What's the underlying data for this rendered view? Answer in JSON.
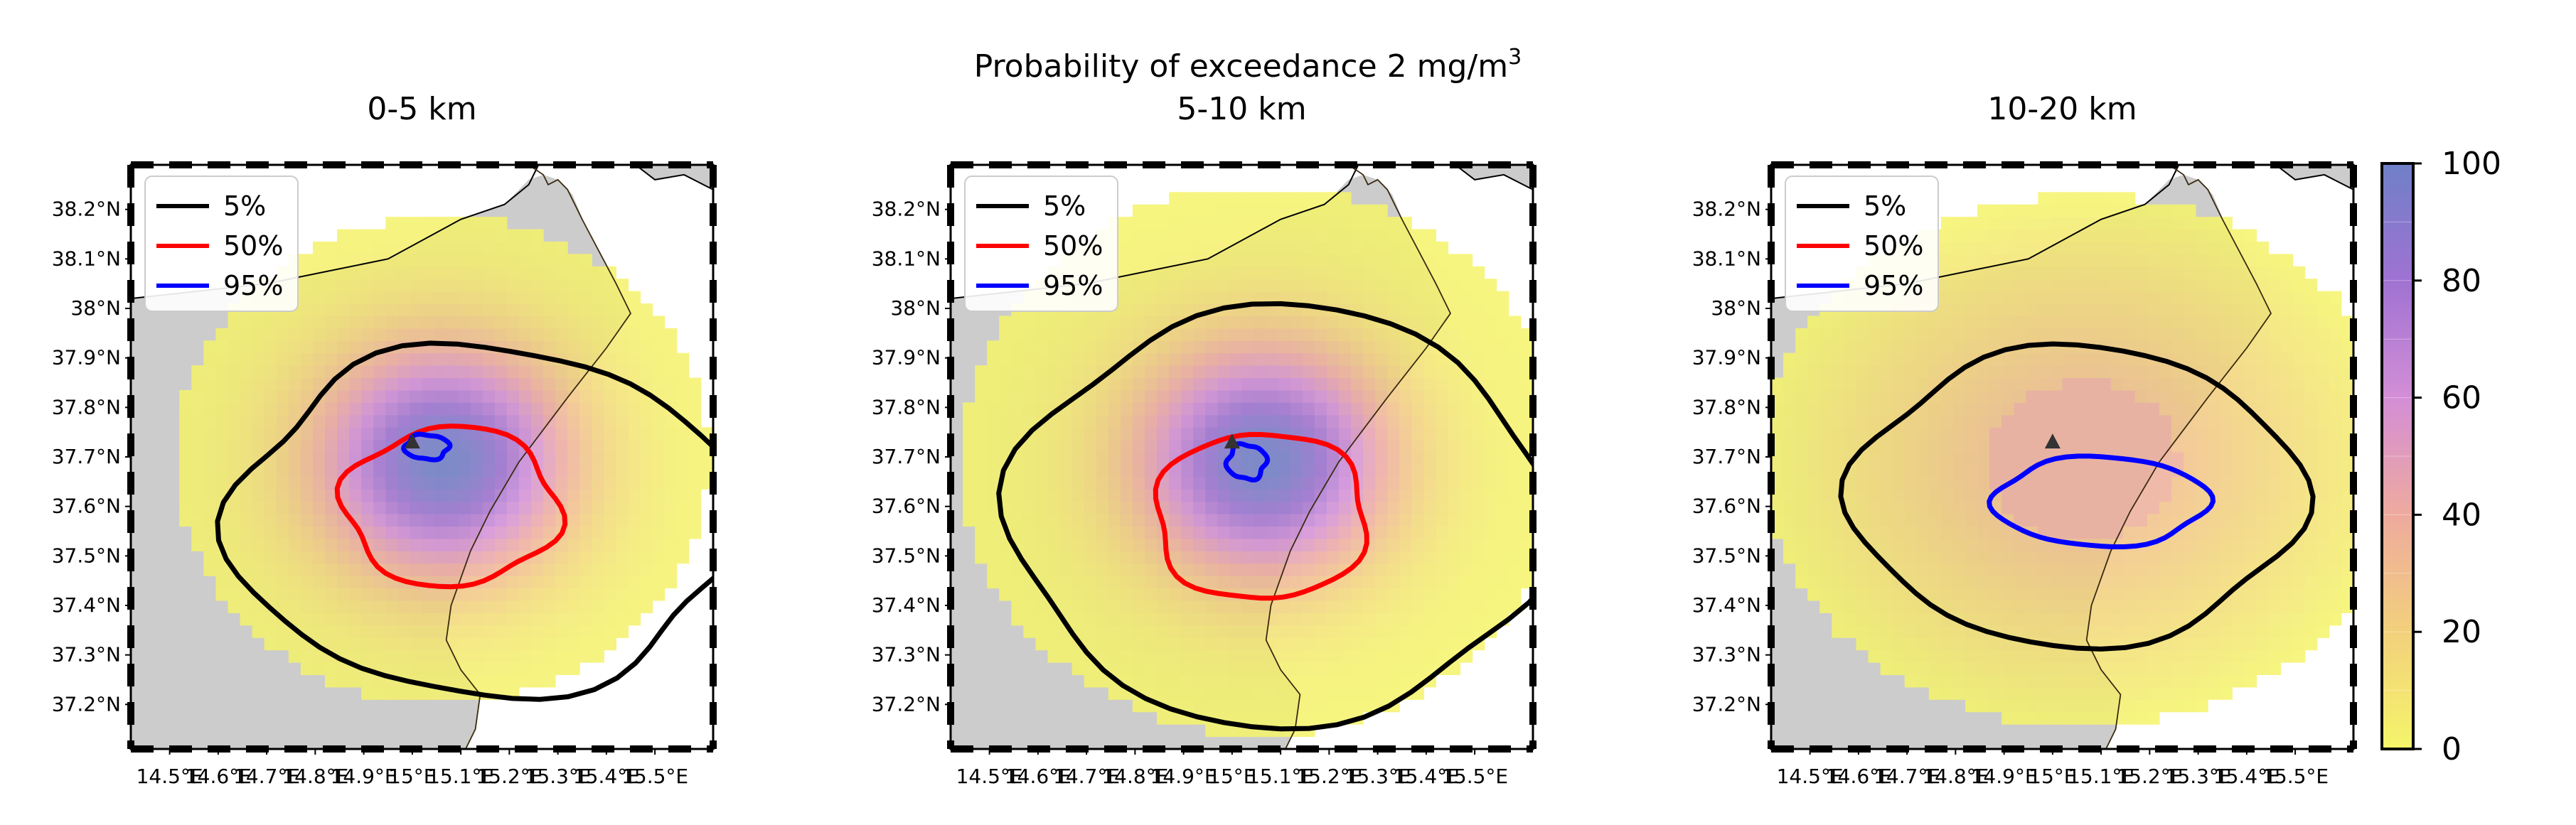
{
  "figure": {
    "suptitle": "Probability of exceedance 2 mg/m",
    "suptitle_sup": "3"
  },
  "colorbar": {
    "ticks": [
      "0",
      "20",
      "40",
      "60",
      "80",
      "100"
    ]
  },
  "colors": {
    "land": "#cccccc",
    "contour_5": "#000000",
    "contour_50": "#ff0000",
    "contour_95": "#0000ff"
  },
  "legend": {
    "items": [
      {
        "label": "5%",
        "color": "#000000"
      },
      {
        "label": "50%",
        "color": "#ff0000"
      },
      {
        "label": "95%",
        "color": "#0000ff"
      }
    ]
  },
  "chart_data": [
    {
      "type": "heatmap",
      "title": "0-5 km",
      "x_tick_labels": [
        "14.5°E",
        "14.6°E",
        "14.7°E",
        "14.8°E",
        "14.9°E",
        "15°E",
        "15.1°E",
        "15.2°E",
        "15.3°E",
        "15.4°E",
        "15.5°E"
      ],
      "y_tick_labels": [
        "38.2°N",
        "38.1°N",
        "38°N",
        "37.9°N",
        "37.8°N",
        "37.7°N",
        "37.6°N",
        "37.5°N",
        "37.4°N",
        "37.3°N",
        "37.2°N"
      ],
      "xlim": [
        14.42,
        15.62
      ],
      "ylim": [
        37.11,
        38.29
      ],
      "contour_levels": [
        5,
        50,
        95
      ],
      "peak_probability": 100,
      "vent": [
        15.0,
        37.73
      ]
    },
    {
      "type": "heatmap",
      "title": "5-10 km",
      "x_tick_labels": [
        "14.5°E",
        "14.6°E",
        "14.7°E",
        "14.8°E",
        "14.9°E",
        "15°E",
        "15.1°E",
        "15.2°E",
        "15.3°E",
        "15.4°E",
        "15.5°E"
      ],
      "y_tick_labels": [
        "38.2°N",
        "38.1°N",
        "38°N",
        "37.9°N",
        "37.8°N",
        "37.7°N",
        "37.6°N",
        "37.5°N",
        "37.4°N",
        "37.3°N",
        "37.2°N"
      ],
      "xlim": [
        14.42,
        15.62
      ],
      "ylim": [
        37.11,
        38.29
      ],
      "contour_levels": [
        5,
        50,
        95
      ],
      "peak_probability": 100,
      "vent": [
        15.0,
        37.73
      ]
    },
    {
      "type": "heatmap",
      "title": "10-20 km",
      "x_tick_labels": [
        "14.5°E",
        "14.6°E",
        "14.7°E",
        "14.8°E",
        "14.9°E",
        "15°E",
        "15.1°E",
        "15.2°E",
        "15.3°E",
        "15.4°E",
        "15.5°E"
      ],
      "y_tick_labels": [
        "38.2°N",
        "38.1°N",
        "38°N",
        "37.9°N",
        "37.8°N",
        "37.7°N",
        "37.6°N",
        "37.5°N",
        "37.4°N",
        "37.3°N",
        "37.2°N"
      ],
      "xlim": [
        14.42,
        15.62
      ],
      "ylim": [
        37.11,
        38.29
      ],
      "contour_levels": [
        5,
        95
      ],
      "peak_probability": 40,
      "vent": [
        15.0,
        37.73
      ]
    }
  ]
}
